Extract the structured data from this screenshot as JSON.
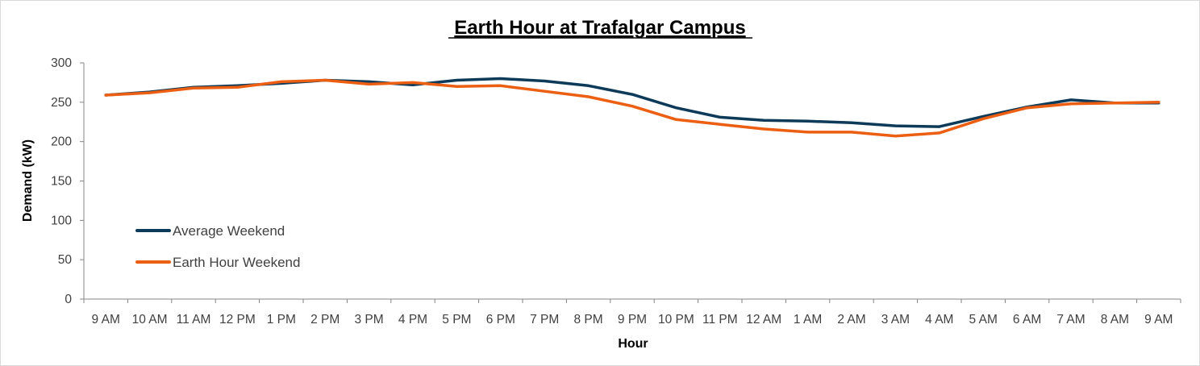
{
  "chart_data": {
    "type": "line",
    "title": "Earth Hour at Trafalgar Campus",
    "xlabel": "Hour",
    "ylabel": "Demand (kW)",
    "ylim": [
      0,
      300
    ],
    "yticks": [
      "0",
      "50",
      "100",
      "150",
      "200",
      "250",
      "300"
    ],
    "categories": [
      "9 AM",
      "10 AM",
      "11 AM",
      "12 PM",
      "1 PM",
      "2 PM",
      "3 PM",
      "4 PM",
      "5 PM",
      "6 PM",
      "7 PM",
      "8 PM",
      "9 PM",
      "10 PM",
      "11 PM",
      "12 AM",
      "1 AM",
      "2 AM",
      "3 AM",
      "4 AM",
      "5 AM",
      "6 AM",
      "7 AM",
      "8 AM",
      "9 AM"
    ],
    "grid": false,
    "legend_position": "left",
    "series": [
      {
        "name": "Average Weekend",
        "color": "#0d3a58",
        "values": [
          259,
          263,
          269,
          271,
          274,
          278,
          276,
          272,
          278,
          280,
          277,
          271,
          260,
          243,
          231,
          227,
          226,
          224,
          220,
          219,
          232,
          244,
          253,
          249,
          249
        ]
      },
      {
        "name": "Earth Hour Weekend",
        "color": "#ec5e12",
        "values": [
          259,
          262,
          268,
          269,
          276,
          278,
          273,
          275,
          270,
          271,
          264,
          257,
          245,
          228,
          222,
          216,
          212,
          212,
          207,
          211,
          229,
          243,
          248,
          249,
          250
        ]
      }
    ]
  }
}
